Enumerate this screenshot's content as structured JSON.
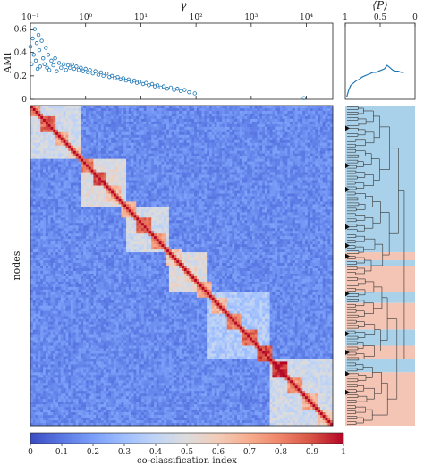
{
  "chart_data": [
    {
      "type": "scatter",
      "name": "ami-vs-gamma",
      "xlabel": "γ",
      "ylabel": "AMI",
      "xscale": "log",
      "xlim": [
        0.1,
        30000
      ],
      "ylim": [
        0,
        0.65
      ],
      "x_tick_labels": [
        "10⁻¹",
        "10⁰",
        "10¹",
        "10²",
        "10³",
        "10⁴"
      ],
      "y_tick_labels": [
        "0",
        "0.2",
        "0.4",
        "0.6"
      ],
      "x_ticks": [
        0.1,
        1,
        10,
        100,
        1000,
        10000
      ],
      "y_ticks": [
        0,
        0.2,
        0.4,
        0.6
      ],
      "marker": "open-circle",
      "color": "#1f77b4",
      "points": [
        [
          0.1,
          0.45
        ],
        [
          0.105,
          0.3
        ],
        [
          0.11,
          0.52
        ],
        [
          0.115,
          0.38
        ],
        [
          0.12,
          0.6
        ],
        [
          0.125,
          0.33
        ],
        [
          0.13,
          0.48
        ],
        [
          0.135,
          0.26
        ],
        [
          0.14,
          0.55
        ],
        [
          0.145,
          0.42
        ],
        [
          0.15,
          0.28
        ],
        [
          0.16,
          0.5
        ],
        [
          0.17,
          0.35
        ],
        [
          0.18,
          0.3
        ],
        [
          0.19,
          0.44
        ],
        [
          0.2,
          0.27
        ],
        [
          0.21,
          0.38
        ],
        [
          0.22,
          0.25
        ],
        [
          0.24,
          0.33
        ],
        [
          0.26,
          0.29
        ],
        [
          0.28,
          0.35
        ],
        [
          0.3,
          0.24
        ],
        [
          0.33,
          0.31
        ],
        [
          0.36,
          0.27
        ],
        [
          0.4,
          0.3
        ],
        [
          0.44,
          0.25
        ],
        [
          0.48,
          0.29
        ],
        [
          0.52,
          0.27
        ],
        [
          0.57,
          0.3
        ],
        [
          0.62,
          0.26
        ],
        [
          0.68,
          0.28
        ],
        [
          0.75,
          0.25
        ],
        [
          0.82,
          0.27
        ],
        [
          0.9,
          0.24
        ],
        [
          1.0,
          0.26
        ],
        [
          1.1,
          0.23
        ],
        [
          1.2,
          0.25
        ],
        [
          1.35,
          0.22
        ],
        [
          1.5,
          0.24
        ],
        [
          1.7,
          0.21
        ],
        [
          1.9,
          0.23
        ],
        [
          2.1,
          0.2
        ],
        [
          2.4,
          0.22
        ],
        [
          2.7,
          0.19
        ],
        [
          3.0,
          0.2
        ],
        [
          3.4,
          0.18
        ],
        [
          3.8,
          0.19
        ],
        [
          4.3,
          0.17
        ],
        [
          4.8,
          0.18
        ],
        [
          5.4,
          0.16
        ],
        [
          6.0,
          0.17
        ],
        [
          6.8,
          0.15
        ],
        [
          7.6,
          0.16
        ],
        [
          8.5,
          0.14
        ],
        [
          9.5,
          0.15
        ],
        [
          11,
          0.13
        ],
        [
          12.5,
          0.14
        ],
        [
          14,
          0.12
        ],
        [
          16,
          0.13
        ],
        [
          18,
          0.11
        ],
        [
          20,
          0.12
        ],
        [
          23,
          0.1
        ],
        [
          26,
          0.11
        ],
        [
          30,
          0.09
        ],
        [
          35,
          0.1
        ],
        [
          40,
          0.08
        ],
        [
          46,
          0.09
        ],
        [
          53,
          0.07
        ],
        [
          62,
          0.08
        ],
        [
          75,
          0.06
        ],
        [
          95,
          0.05
        ],
        [
          9000,
          0.01
        ]
      ]
    },
    {
      "type": "line",
      "name": "mean-participation",
      "xlabel": "⟨P⟩",
      "xlim": [
        1,
        0
      ],
      "x_tick_labels": [
        "1",
        "0.5",
        "0"
      ],
      "x_ticks": [
        1,
        0.5,
        0
      ],
      "color": "#1f77b4",
      "points": [
        [
          0.98,
          0.02
        ],
        [
          0.95,
          0.08
        ],
        [
          0.92,
          0.12
        ],
        [
          0.88,
          0.14
        ],
        [
          0.84,
          0.16
        ],
        [
          0.8,
          0.17
        ],
        [
          0.76,
          0.19
        ],
        [
          0.72,
          0.2
        ],
        [
          0.68,
          0.21
        ],
        [
          0.64,
          0.22
        ],
        [
          0.6,
          0.23
        ],
        [
          0.56,
          0.23
        ],
        [
          0.52,
          0.24
        ],
        [
          0.48,
          0.25
        ],
        [
          0.44,
          0.26
        ],
        [
          0.4,
          0.29
        ],
        [
          0.36,
          0.27
        ],
        [
          0.32,
          0.25
        ],
        [
          0.28,
          0.24
        ],
        [
          0.24,
          0.24
        ],
        [
          0.2,
          0.23
        ],
        [
          0.16,
          0.23
        ]
      ]
    },
    {
      "type": "heatmap",
      "name": "co-classification-matrix",
      "ylabel": "nodes",
      "colorbar_label": "co-classification index",
      "colorbar_ticks": [
        "0",
        "0.1",
        "0.2",
        "0.3",
        "0.4",
        "0.5",
        "0.6",
        "0.7",
        "0.8",
        "0.9",
        "1"
      ],
      "colorscale": [
        "#3b4cc0",
        "#5977e3",
        "#7b9ff9",
        "#9ebeff",
        "#c0d4f5",
        "#dddcdc",
        "#f2cbb7",
        "#f7ac8e",
        "#ee8468",
        "#d65244",
        "#b40426"
      ],
      "n_nodes": 120,
      "block_boundaries": [
        0,
        4,
        10,
        15,
        20,
        25,
        30,
        36,
        42,
        48,
        54,
        60,
        66,
        72,
        78,
        84,
        90,
        96,
        102,
        108,
        114,
        120
      ],
      "block_strength": [
        0.75,
        0.85,
        0.7,
        0.6,
        0.8,
        0.9,
        0.65,
        0.7,
        0.85,
        0.75,
        0.6,
        0.55,
        0.7,
        0.65,
        0.8,
        0.85,
        0.9,
        0.95,
        0.75,
        0.7,
        0.6
      ],
      "supergroups": [
        [
          0,
          20,
          0.45
        ],
        [
          20,
          38,
          0.5
        ],
        [
          38,
          55,
          0.45
        ],
        [
          55,
          70,
          0.5
        ],
        [
          70,
          95,
          0.35
        ],
        [
          95,
          120,
          0.45
        ]
      ],
      "background": 0.15
    },
    {
      "type": "dendrogram",
      "name": "node-dendrogram",
      "side_colors": [
        "#a9d2ea",
        "#f4c5b4"
      ],
      "side_color_bands": [
        [
          0,
          55,
          0
        ],
        [
          55,
          58,
          1
        ],
        [
          58,
          60,
          0
        ],
        [
          60,
          70,
          1
        ],
        [
          70,
          74,
          0
        ],
        [
          74,
          84,
          1
        ],
        [
          84,
          90,
          0
        ],
        [
          90,
          95,
          1
        ],
        [
          95,
          100,
          0
        ],
        [
          100,
          120,
          1
        ]
      ],
      "leaf_triangles": [
        8,
        22,
        31,
        45,
        52,
        56,
        70,
        85,
        92,
        100,
        107
      ]
    }
  ]
}
